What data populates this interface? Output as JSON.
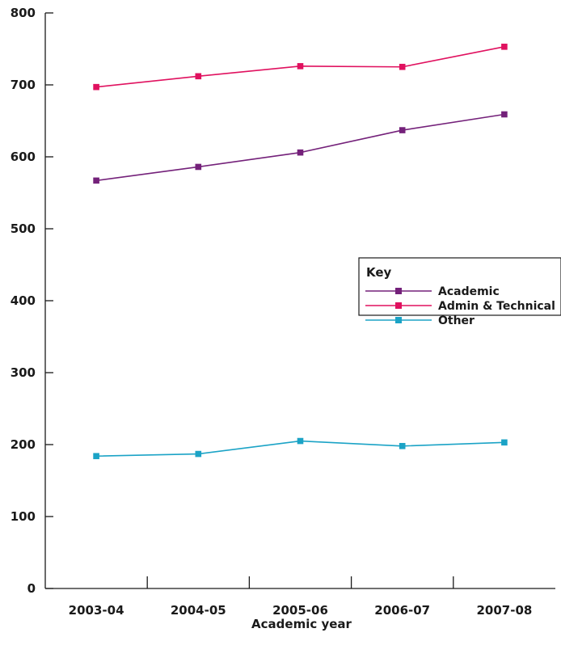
{
  "chart_data": {
    "type": "line",
    "title": "",
    "xlabel": "Academic year",
    "ylabel": "",
    "categories": [
      "2003-04",
      "2004-05",
      "2005-06",
      "2006-07",
      "2007-08"
    ],
    "ylim": [
      0,
      800
    ],
    "yticks": [
      "0",
      "100",
      "200",
      "300",
      "400",
      "500",
      "600",
      "700",
      "800"
    ],
    "grid": false,
    "legend": {
      "title": "Key",
      "placement": "right"
    },
    "series": [
      {
        "name": "Academic",
        "color": "#74217a",
        "values": [
          567,
          586,
          606,
          637,
          659
        ]
      },
      {
        "name": "Admin & Technical",
        "color": "#e0115f",
        "values": [
          697,
          712,
          726,
          725,
          753
        ]
      },
      {
        "name": "Other",
        "color": "#1ba3c6",
        "values": [
          184,
          187,
          205,
          198,
          203
        ]
      }
    ]
  }
}
